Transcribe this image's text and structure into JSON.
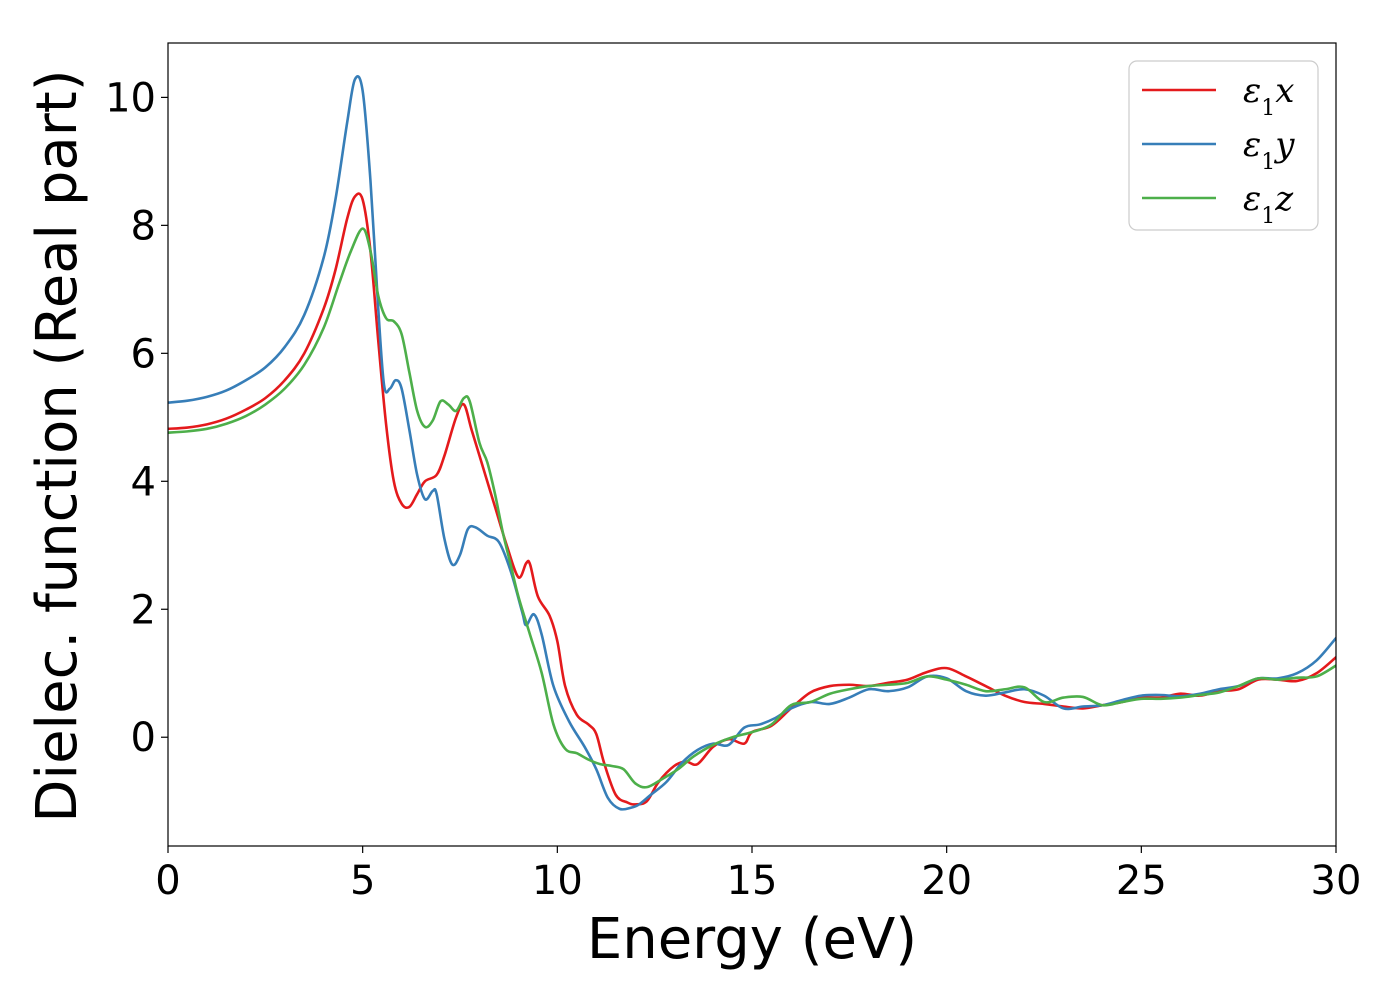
{
  "chart_data": {
    "type": "line",
    "title": "",
    "xlabel": "Energy (eV)",
    "ylabel": "Dielec. function (Real part)",
    "xlim": [
      0,
      30
    ],
    "ylim": [
      -1.7,
      10.85
    ],
    "xticks": [
      0,
      5,
      10,
      15,
      20,
      25,
      30
    ],
    "yticks": [
      0,
      2,
      4,
      6,
      8,
      10
    ],
    "grid": false,
    "legend_position": "top-right",
    "series": [
      {
        "name": "ε₁x",
        "legend_base": "ε",
        "legend_sub": "1",
        "legend_suffix": "x",
        "color": "#e41a1c",
        "points": [
          [
            0,
            4.82
          ],
          [
            0.5,
            4.84
          ],
          [
            1.0,
            4.89
          ],
          [
            1.5,
            4.98
          ],
          [
            2.0,
            5.12
          ],
          [
            2.5,
            5.3
          ],
          [
            3.0,
            5.58
          ],
          [
            3.5,
            6.0
          ],
          [
            4.0,
            6.7
          ],
          [
            4.3,
            7.3
          ],
          [
            4.6,
            8.1
          ],
          [
            4.8,
            8.45
          ],
          [
            5.0,
            8.4
          ],
          [
            5.2,
            7.6
          ],
          [
            5.4,
            6.2
          ],
          [
            5.6,
            4.9
          ],
          [
            5.8,
            4.0
          ],
          [
            6.0,
            3.65
          ],
          [
            6.2,
            3.6
          ],
          [
            6.4,
            3.8
          ],
          [
            6.6,
            4.0
          ],
          [
            6.9,
            4.1
          ],
          [
            7.1,
            4.4
          ],
          [
            7.4,
            5.0
          ],
          [
            7.6,
            5.2
          ],
          [
            7.8,
            4.8
          ],
          [
            8.1,
            4.2
          ],
          [
            8.4,
            3.6
          ],
          [
            8.7,
            3.0
          ],
          [
            9.0,
            2.5
          ],
          [
            9.2,
            2.72
          ],
          [
            9.3,
            2.7
          ],
          [
            9.5,
            2.2
          ],
          [
            9.8,
            1.9
          ],
          [
            10.0,
            1.5
          ],
          [
            10.2,
            0.8
          ],
          [
            10.5,
            0.35
          ],
          [
            10.8,
            0.2
          ],
          [
            11.0,
            0.05
          ],
          [
            11.2,
            -0.4
          ],
          [
            11.5,
            -0.9
          ],
          [
            11.8,
            -1.02
          ],
          [
            12.0,
            -1.05
          ],
          [
            12.3,
            -1.0
          ],
          [
            12.6,
            -0.7
          ],
          [
            13.0,
            -0.45
          ],
          [
            13.3,
            -0.38
          ],
          [
            13.6,
            -0.42
          ],
          [
            14.0,
            -0.15
          ],
          [
            14.4,
            -0.03
          ],
          [
            14.8,
            -0.1
          ],
          [
            15.0,
            0.08
          ],
          [
            15.5,
            0.18
          ],
          [
            16.0,
            0.45
          ],
          [
            16.5,
            0.7
          ],
          [
            17.0,
            0.8
          ],
          [
            17.5,
            0.82
          ],
          [
            18.0,
            0.8
          ],
          [
            18.5,
            0.85
          ],
          [
            19.0,
            0.9
          ],
          [
            19.5,
            1.02
          ],
          [
            20.0,
            1.08
          ],
          [
            20.5,
            0.95
          ],
          [
            21.0,
            0.8
          ],
          [
            21.5,
            0.65
          ],
          [
            22.0,
            0.55
          ],
          [
            22.5,
            0.52
          ],
          [
            23.0,
            0.48
          ],
          [
            23.5,
            0.45
          ],
          [
            24.0,
            0.5
          ],
          [
            24.5,
            0.55
          ],
          [
            25.0,
            0.62
          ],
          [
            25.5,
            0.62
          ],
          [
            26.0,
            0.68
          ],
          [
            26.5,
            0.65
          ],
          [
            27.0,
            0.72
          ],
          [
            27.5,
            0.75
          ],
          [
            28.0,
            0.9
          ],
          [
            28.5,
            0.9
          ],
          [
            29.0,
            0.88
          ],
          [
            29.5,
            1.0
          ],
          [
            30.0,
            1.25
          ]
        ]
      },
      {
        "name": "ε₁y",
        "legend_base": "ε",
        "legend_sub": "1",
        "legend_suffix": "y",
        "color": "#377eb8",
        "points": [
          [
            0,
            5.23
          ],
          [
            0.5,
            5.26
          ],
          [
            1.0,
            5.32
          ],
          [
            1.5,
            5.42
          ],
          [
            2.0,
            5.58
          ],
          [
            2.5,
            5.78
          ],
          [
            3.0,
            6.1
          ],
          [
            3.5,
            6.6
          ],
          [
            4.0,
            7.5
          ],
          [
            4.3,
            8.4
          ],
          [
            4.6,
            9.6
          ],
          [
            4.8,
            10.28
          ],
          [
            5.0,
            10.1
          ],
          [
            5.2,
            8.7
          ],
          [
            5.4,
            6.7
          ],
          [
            5.55,
            5.5
          ],
          [
            5.7,
            5.45
          ],
          [
            5.85,
            5.58
          ],
          [
            6.0,
            5.45
          ],
          [
            6.2,
            4.8
          ],
          [
            6.4,
            4.1
          ],
          [
            6.6,
            3.72
          ],
          [
            6.8,
            3.85
          ],
          [
            6.9,
            3.8
          ],
          [
            7.1,
            3.1
          ],
          [
            7.3,
            2.7
          ],
          [
            7.5,
            2.85
          ],
          [
            7.7,
            3.25
          ],
          [
            7.9,
            3.28
          ],
          [
            8.2,
            3.15
          ],
          [
            8.5,
            3.05
          ],
          [
            8.8,
            2.6
          ],
          [
            9.1,
            1.95
          ],
          [
            9.2,
            1.75
          ],
          [
            9.4,
            1.92
          ],
          [
            9.6,
            1.6
          ],
          [
            9.9,
            0.8
          ],
          [
            10.3,
            0.25
          ],
          [
            10.7,
            -0.15
          ],
          [
            11.0,
            -0.5
          ],
          [
            11.3,
            -0.95
          ],
          [
            11.6,
            -1.12
          ],
          [
            11.9,
            -1.1
          ],
          [
            12.1,
            -1.05
          ],
          [
            12.4,
            -0.9
          ],
          [
            12.8,
            -0.7
          ],
          [
            13.2,
            -0.4
          ],
          [
            13.6,
            -0.2
          ],
          [
            14.0,
            -0.1
          ],
          [
            14.4,
            -0.12
          ],
          [
            14.8,
            0.15
          ],
          [
            15.2,
            0.2
          ],
          [
            15.6,
            0.3
          ],
          [
            16.0,
            0.45
          ],
          [
            16.5,
            0.55
          ],
          [
            17.0,
            0.52
          ],
          [
            17.5,
            0.62
          ],
          [
            18.0,
            0.75
          ],
          [
            18.5,
            0.72
          ],
          [
            19.0,
            0.78
          ],
          [
            19.5,
            0.95
          ],
          [
            20.0,
            0.92
          ],
          [
            20.5,
            0.72
          ],
          [
            21.0,
            0.65
          ],
          [
            21.5,
            0.7
          ],
          [
            22.0,
            0.75
          ],
          [
            22.5,
            0.65
          ],
          [
            23.0,
            0.45
          ],
          [
            23.5,
            0.48
          ],
          [
            24.0,
            0.5
          ],
          [
            24.5,
            0.58
          ],
          [
            25.0,
            0.65
          ],
          [
            25.5,
            0.66
          ],
          [
            26.0,
            0.64
          ],
          [
            26.5,
            0.68
          ],
          [
            27.0,
            0.75
          ],
          [
            27.5,
            0.8
          ],
          [
            28.0,
            0.92
          ],
          [
            28.5,
            0.92
          ],
          [
            29.0,
            1.0
          ],
          [
            29.5,
            1.2
          ],
          [
            30.0,
            1.55
          ]
        ]
      },
      {
        "name": "ε₁z",
        "legend_base": "ε",
        "legend_sub": "1",
        "legend_suffix": "z",
        "color": "#4daf4a",
        "points": [
          [
            0,
            4.76
          ],
          [
            0.5,
            4.78
          ],
          [
            1.0,
            4.82
          ],
          [
            1.5,
            4.9
          ],
          [
            2.0,
            5.02
          ],
          [
            2.5,
            5.2
          ],
          [
            3.0,
            5.45
          ],
          [
            3.5,
            5.82
          ],
          [
            4.0,
            6.4
          ],
          [
            4.4,
            7.1
          ],
          [
            4.7,
            7.6
          ],
          [
            5.0,
            7.95
          ],
          [
            5.2,
            7.6
          ],
          [
            5.4,
            6.9
          ],
          [
            5.6,
            6.55
          ],
          [
            5.8,
            6.5
          ],
          [
            6.0,
            6.3
          ],
          [
            6.2,
            5.7
          ],
          [
            6.4,
            5.1
          ],
          [
            6.6,
            4.85
          ],
          [
            6.8,
            4.95
          ],
          [
            7.0,
            5.25
          ],
          [
            7.2,
            5.2
          ],
          [
            7.4,
            5.1
          ],
          [
            7.6,
            5.3
          ],
          [
            7.75,
            5.25
          ],
          [
            8.0,
            4.6
          ],
          [
            8.2,
            4.3
          ],
          [
            8.4,
            3.8
          ],
          [
            8.6,
            3.2
          ],
          [
            8.8,
            2.7
          ],
          [
            9.0,
            2.2
          ],
          [
            9.3,
            1.6
          ],
          [
            9.6,
            1.0
          ],
          [
            9.9,
            0.2
          ],
          [
            10.2,
            -0.18
          ],
          [
            10.5,
            -0.25
          ],
          [
            10.8,
            -0.35
          ],
          [
            11.1,
            -0.42
          ],
          [
            11.4,
            -0.45
          ],
          [
            11.7,
            -0.5
          ],
          [
            12.0,
            -0.72
          ],
          [
            12.3,
            -0.78
          ],
          [
            12.7,
            -0.65
          ],
          [
            13.1,
            -0.5
          ],
          [
            13.5,
            -0.3
          ],
          [
            14.0,
            -0.12
          ],
          [
            14.5,
            0.0
          ],
          [
            15.0,
            0.08
          ],
          [
            15.5,
            0.2
          ],
          [
            16.0,
            0.5
          ],
          [
            16.5,
            0.55
          ],
          [
            17.0,
            0.68
          ],
          [
            17.5,
            0.75
          ],
          [
            18.0,
            0.8
          ],
          [
            18.5,
            0.82
          ],
          [
            19.0,
            0.85
          ],
          [
            19.5,
            0.95
          ],
          [
            20.0,
            0.9
          ],
          [
            20.5,
            0.82
          ],
          [
            21.0,
            0.72
          ],
          [
            21.5,
            0.75
          ],
          [
            22.0,
            0.78
          ],
          [
            22.5,
            0.55
          ],
          [
            23.0,
            0.62
          ],
          [
            23.5,
            0.63
          ],
          [
            24.0,
            0.5
          ],
          [
            24.5,
            0.55
          ],
          [
            25.0,
            0.6
          ],
          [
            25.5,
            0.6
          ],
          [
            26.0,
            0.62
          ],
          [
            26.5,
            0.66
          ],
          [
            27.0,
            0.7
          ],
          [
            27.5,
            0.8
          ],
          [
            28.0,
            0.92
          ],
          [
            28.5,
            0.9
          ],
          [
            29.0,
            0.93
          ],
          [
            29.5,
            0.95
          ],
          [
            30.0,
            1.12
          ]
        ]
      }
    ]
  }
}
